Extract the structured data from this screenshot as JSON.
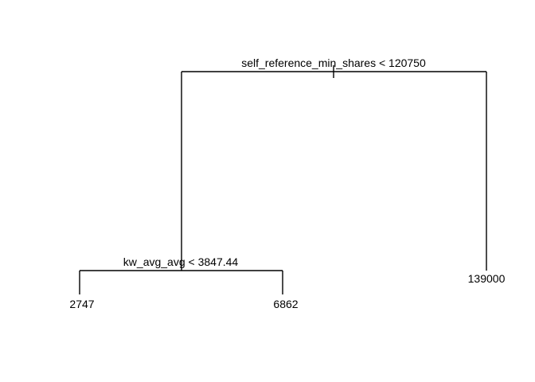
{
  "tree": {
    "root": {
      "split": "self_reference_min_shares < 120750",
      "left": {
        "split": "kw_avg_avg < 3847.44",
        "left": {
          "leaf": "2747"
        },
        "right": {
          "leaf": "6862"
        }
      },
      "right": {
        "leaf": "139000"
      }
    }
  },
  "colors": {
    "line": "#000000",
    "text": "#000000",
    "background": "#ffffff"
  }
}
